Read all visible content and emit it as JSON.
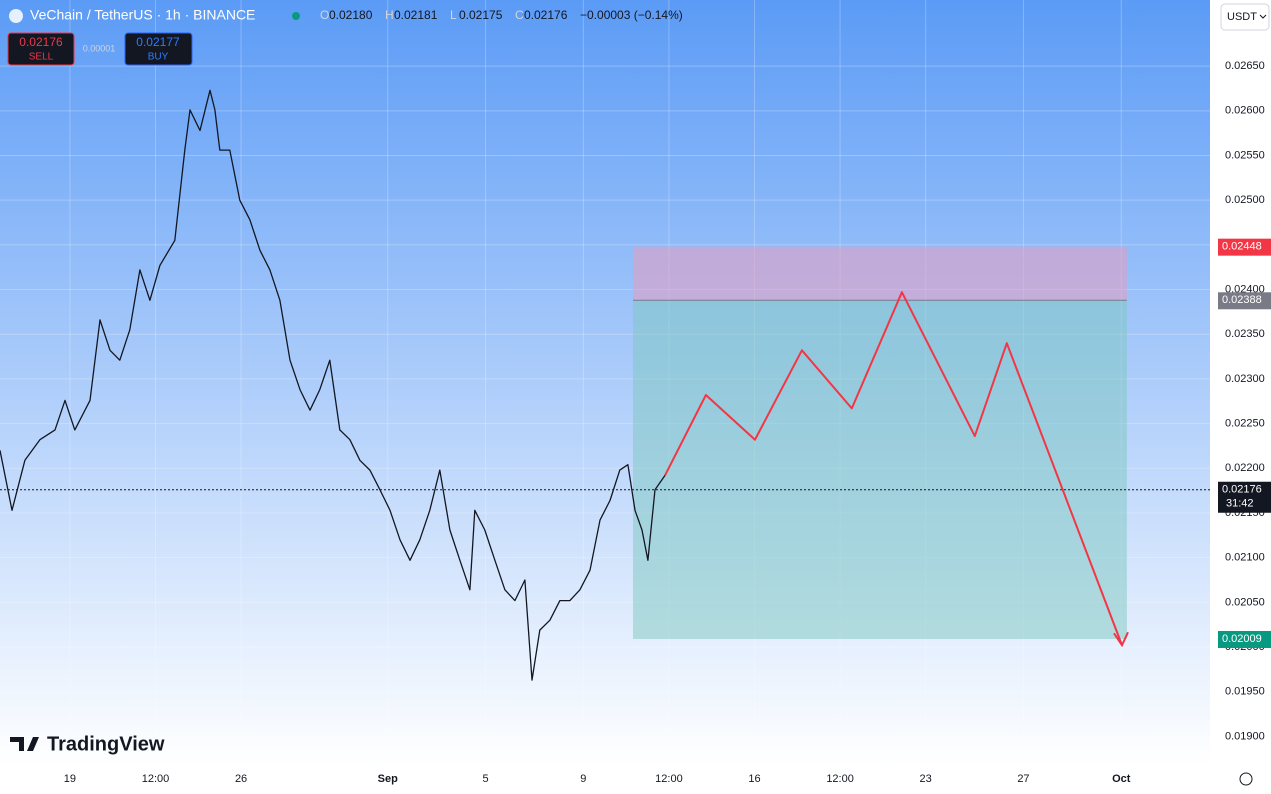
{
  "chart_data": {
    "type": "line",
    "symbol": "VeChain / TetherUS · 1h · BINANCE",
    "ohlc": [
      {
        "key": "O",
        "value": "0.02180"
      },
      {
        "key": "H",
        "value": "0.02181"
      },
      {
        "key": "L",
        "value": "0.02175"
      },
      {
        "key": "C",
        "value": "0.02176"
      }
    ],
    "change": "−0.00003 (−0.14%)",
    "sell": {
      "price": "0.02176",
      "label": "SELL"
    },
    "spread": "0.00001",
    "buy": {
      "price": "0.02177",
      "label": "BUY"
    },
    "currency": "USDT",
    "brand": "TradingView",
    "xlim": [
      16.14,
      65.63
    ],
    "ylim": [
      0.01868,
      0.02724
    ],
    "xticks": [
      19,
      {
        "value": 22.5,
        "label": "12:00"
      },
      26,
      {
        "value": 32,
        "label": "Sep"
      },
      {
        "value": 36,
        "label": "5"
      },
      {
        "value": 40,
        "label": "9"
      },
      {
        "value": 43.5,
        "label": "12:00"
      },
      {
        "value": 47,
        "label": "16"
      },
      {
        "value": 50.5,
        "label": "12:00"
      },
      {
        "value": 54,
        "label": "23"
      },
      {
        "value": 58,
        "label": "27"
      },
      {
        "value": 62,
        "label": "Oct"
      }
    ],
    "yticks": [
      {
        "value": 0.019,
        "label": "0.01900"
      },
      {
        "value": 0.0195,
        "label": "0.01950"
      },
      {
        "value": 0.02,
        "label": "0.02000"
      },
      {
        "value": 0.0205,
        "label": "0.02050"
      },
      {
        "value": 0.021,
        "label": "0.02100"
      },
      {
        "value": 0.0215,
        "label": "0.02150"
      },
      {
        "value": 0.022,
        "label": "0.02200"
      },
      {
        "value": 0.0225,
        "label": "0.02250"
      },
      {
        "value": 0.023,
        "label": "0.02300"
      },
      {
        "value": 0.0235,
        "label": "0.02350"
      },
      {
        "value": 0.024,
        "label": "0.02400"
      },
      {
        "value": 0.0245,
        "label": "0.02450"
      },
      {
        "value": 0.025,
        "label": "0.02500"
      },
      {
        "value": 0.0255,
        "label": "0.02550"
      },
      {
        "value": 0.026,
        "label": "0.02600"
      },
      {
        "value": 0.0265,
        "label": "0.02650"
      }
    ],
    "grid": true,
    "series": [
      {
        "color": "#131722",
        "x": [
          16.14,
          16.63,
          17.16,
          17.77,
          18.39,
          18.8,
          19.2,
          19.82,
          20.23,
          20.64,
          21.04,
          21.45,
          21.86,
          22.27,
          22.68,
          23.29,
          23.7,
          23.91,
          24.32,
          24.73,
          24.93,
          25.13,
          25.54,
          25.95,
          26.36,
          26.77,
          27.18,
          27.59,
          28.0,
          28.41,
          28.82,
          29.22,
          29.63,
          30.04,
          30.45,
          30.86,
          31.27,
          31.68,
          32.09,
          32.5,
          32.91,
          33.31,
          33.72,
          34.13,
          34.54,
          34.95,
          35.36,
          35.56,
          35.97,
          36.38,
          36.79,
          37.2,
          37.61,
          37.9,
          38.22,
          38.63,
          39.04,
          39.45,
          39.86,
          40.27,
          40.68,
          41.09,
          41.49,
          41.82,
          42.11,
          42.4,
          42.64,
          42.93,
          43.34
        ],
        "values": [
          0.0222,
          0.02153,
          0.02209,
          0.02232,
          0.02243,
          0.02276,
          0.02243,
          0.02276,
          0.02366,
          0.02332,
          0.02321,
          0.02355,
          0.02422,
          0.02388,
          0.02427,
          0.02455,
          0.02556,
          0.02601,
          0.02578,
          0.02623,
          0.02601,
          0.02556,
          0.02556,
          0.025,
          0.02478,
          0.02444,
          0.02422,
          0.02388,
          0.02321,
          0.02288,
          0.02265,
          0.02288,
          0.02321,
          0.02243,
          0.02232,
          0.02209,
          0.02198,
          0.02176,
          0.02153,
          0.0212,
          0.02097,
          0.0212,
          0.02153,
          0.02198,
          0.02131,
          0.02097,
          0.02064,
          0.02153,
          0.02131,
          0.02097,
          0.02064,
          0.02052,
          0.02075,
          0.01963,
          0.02019,
          0.0203,
          0.02052,
          0.02052,
          0.02064,
          0.02086,
          0.02142,
          0.02164,
          0.02198,
          0.02204,
          0.02153,
          0.02131,
          0.02097,
          0.02176,
          0.02192
        ]
      },
      {
        "color": "#f23645",
        "x": [
          43.34,
          45.01,
          47.02,
          48.94,
          50.98,
          53.03,
          56.01,
          57.32,
          62.03
        ],
        "values": [
          0.02192,
          0.02282,
          0.02232,
          0.02332,
          0.02267,
          0.02397,
          0.02236,
          0.0234,
          0.02002
        ]
      }
    ],
    "position": {
      "stop": 0.02448,
      "entry": 0.02388,
      "target": 0.02009,
      "x_start": 42.03,
      "x_end": 62.23
    },
    "last_price": 0.02176,
    "countdown": "31:42"
  }
}
